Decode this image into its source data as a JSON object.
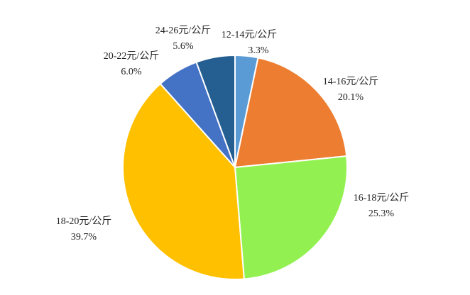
{
  "chart_data": {
    "type": "pie",
    "categories": [
      "12-14元/公斤",
      "14-16元/公斤",
      "16-18元/公斤",
      "18-20元/公斤",
      "20-22元/公斤",
      "24-26元/公斤"
    ],
    "values": [
      3.3,
      20.1,
      25.3,
      39.7,
      6.0,
      5.6
    ],
    "value_labels": [
      "3.3%",
      "20.1%",
      "25.3%",
      "39.7%",
      "6.0%",
      "5.6%"
    ],
    "colors": [
      "#5b9bd5",
      "#ed7d31",
      "#92f150",
      "#ffc000",
      "#4472c4",
      "#255e91"
    ]
  }
}
